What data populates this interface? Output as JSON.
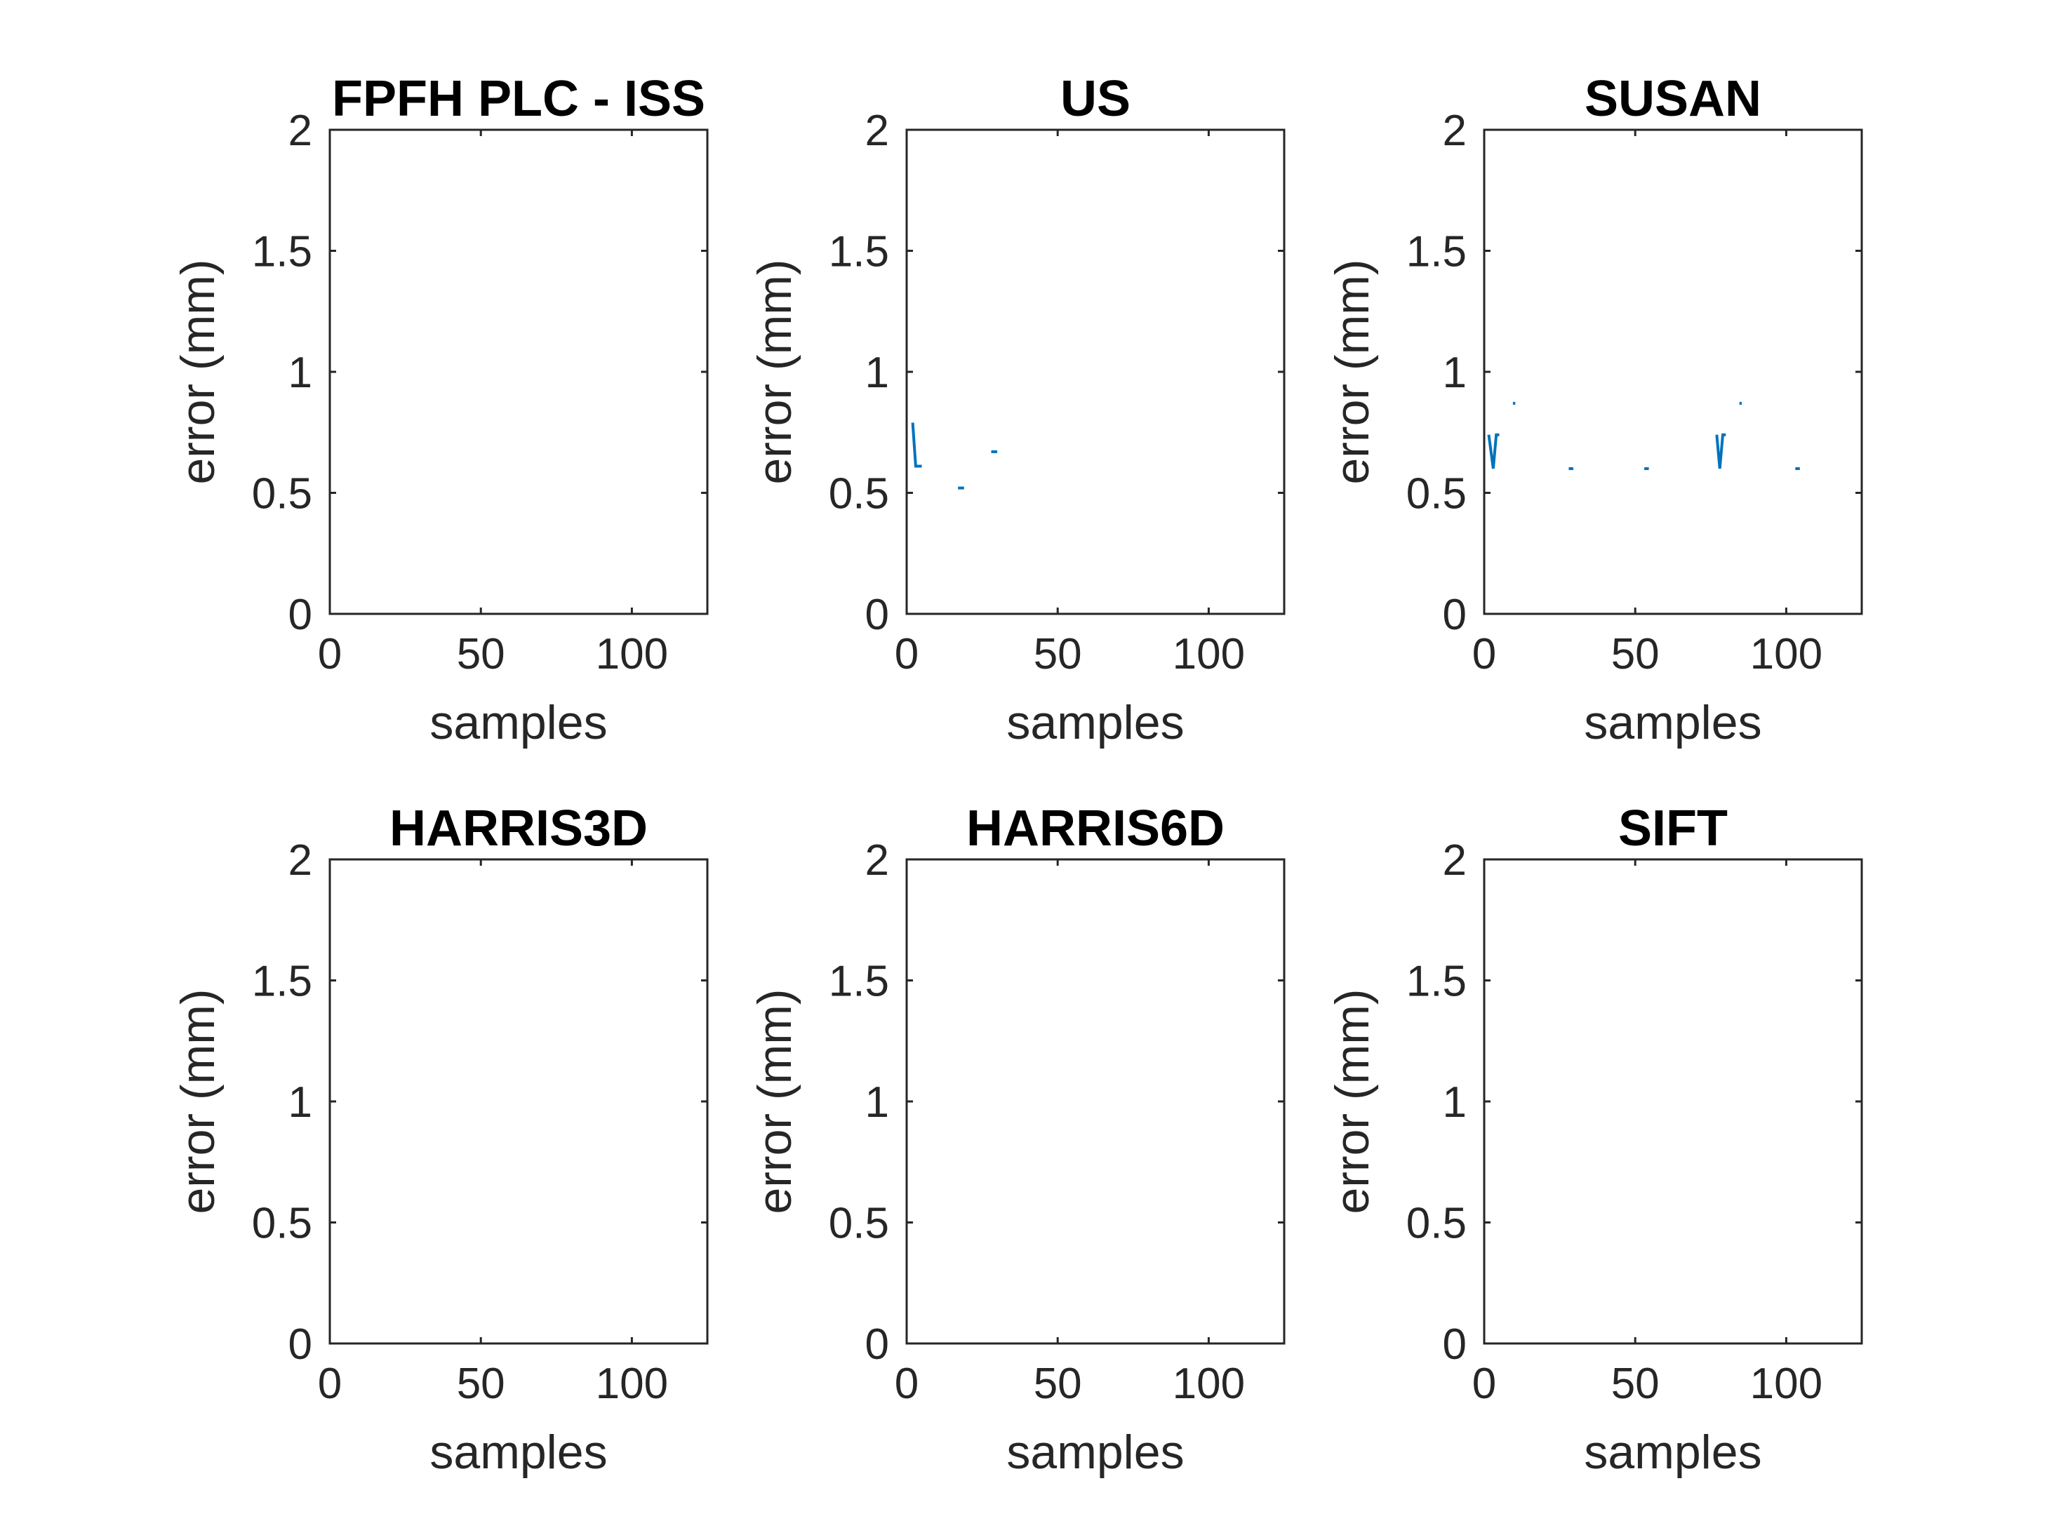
{
  "chart_data": [
    {
      "type": "line",
      "title": "FPFH PLC - ISS",
      "xlabel": "samples",
      "ylabel": "error (mm)",
      "xlim": [
        0,
        125
      ],
      "ylim": [
        0,
        2
      ],
      "xticks": [
        "0",
        "50",
        "100"
      ],
      "yticks": [
        "0",
        "0.5",
        "1",
        "1.5",
        "2"
      ],
      "grid": false,
      "series": [
        {
          "segments": []
        }
      ]
    },
    {
      "type": "line",
      "title": "US",
      "xlabel": "samples",
      "ylabel": "error (mm)",
      "xlim": [
        0,
        125
      ],
      "ylim": [
        0,
        2
      ],
      "xticks": [
        "0",
        "50",
        "100"
      ],
      "yticks": [
        "0",
        "0.5",
        "1",
        "1.5",
        "2"
      ],
      "grid": false,
      "series": [
        {
          "segments": [
            [
              [
                2,
                0.79
              ],
              [
                3,
                0.61
              ],
              [
                5,
                0.61
              ]
            ],
            [
              [
                17,
                0.52
              ],
              [
                19,
                0.52
              ]
            ],
            [
              [
                28,
                0.67
              ],
              [
                30,
                0.67
              ]
            ]
          ]
        }
      ]
    },
    {
      "type": "line",
      "title": "SUSAN",
      "xlabel": "samples",
      "ylabel": "error (mm)",
      "xlim": [
        0,
        125
      ],
      "ylim": [
        0,
        2
      ],
      "xticks": [
        "0",
        "50",
        "100"
      ],
      "yticks": [
        "0",
        "0.5",
        "1",
        "1.5",
        "2"
      ],
      "grid": false,
      "series": [
        {
          "segments": [
            [
              [
                1.5,
                0.74
              ],
              [
                3,
                0.6
              ],
              [
                4,
                0.74
              ],
              [
                5,
                0.74
              ]
            ],
            [
              [
                9.5,
                0.87
              ],
              [
                10.3,
                0.87
              ]
            ],
            [
              [
                28,
                0.6
              ],
              [
                29.5,
                0.6
              ]
            ],
            [
              [
                53,
                0.6
              ],
              [
                54.5,
                0.6
              ]
            ],
            [
              [
                77,
                0.74
              ],
              [
                78,
                0.6
              ],
              [
                79,
                0.74
              ],
              [
                80,
                0.74
              ]
            ],
            [
              [
                84.5,
                0.87
              ],
              [
                85.3,
                0.87
              ]
            ],
            [
              [
                103,
                0.6
              ],
              [
                104.5,
                0.6
              ]
            ]
          ]
        }
      ]
    },
    {
      "type": "line",
      "title": "HARRIS3D",
      "xlabel": "samples",
      "ylabel": "error (mm)",
      "xlim": [
        0,
        125
      ],
      "ylim": [
        0,
        2
      ],
      "xticks": [
        "0",
        "50",
        "100"
      ],
      "yticks": [
        "0",
        "0.5",
        "1",
        "1.5",
        "2"
      ],
      "grid": false,
      "series": [
        {
          "segments": []
        }
      ]
    },
    {
      "type": "line",
      "title": "HARRIS6D",
      "xlabel": "samples",
      "ylabel": "error (mm)",
      "xlim": [
        0,
        125
      ],
      "ylim": [
        0,
        2
      ],
      "xticks": [
        "0",
        "50",
        "100"
      ],
      "yticks": [
        "0",
        "0.5",
        "1",
        "1.5",
        "2"
      ],
      "grid": false,
      "series": [
        {
          "segments": []
        }
      ]
    },
    {
      "type": "line",
      "title": "SIFT",
      "xlabel": "samples",
      "ylabel": "error (mm)",
      "xlim": [
        0,
        125
      ],
      "ylim": [
        0,
        2
      ],
      "xticks": [
        "0",
        "50",
        "100"
      ],
      "yticks": [
        "0",
        "0.5",
        "1",
        "1.5",
        "2"
      ],
      "grid": false,
      "series": [
        {
          "segments": []
        }
      ]
    }
  ],
  "colors": {
    "series": "#0072BD",
    "axes": "#262626",
    "title": "#000000",
    "background": "#ffffff"
  }
}
